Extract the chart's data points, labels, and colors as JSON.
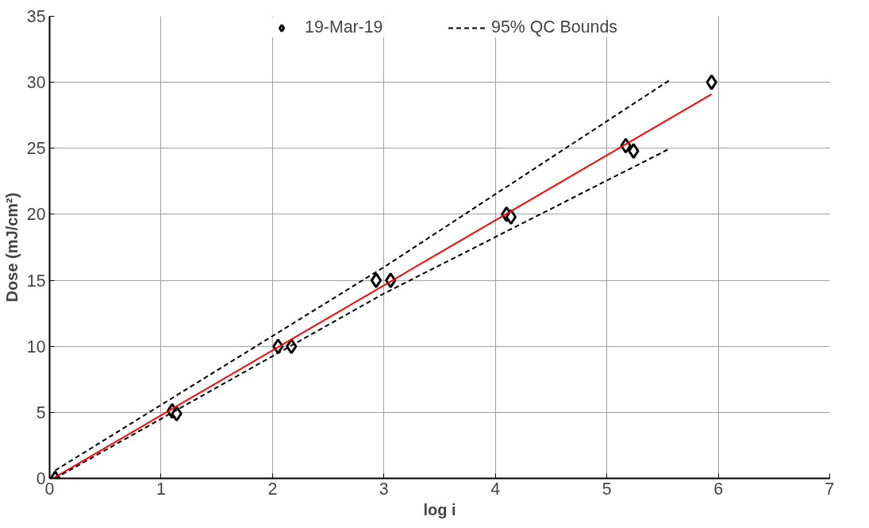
{
  "chart_data": {
    "type": "scatter",
    "xlabel": "log i",
    "ylabel": "Dose (mJ/cm²)",
    "xlim": [
      0,
      7
    ],
    "ylim": [
      0,
      35
    ],
    "xticks": [
      0,
      1,
      2,
      3,
      4,
      5,
      6,
      7
    ],
    "yticks": [
      0,
      5,
      10,
      15,
      20,
      25,
      30,
      35
    ],
    "grid": true,
    "legend": "top",
    "series": [
      {
        "name": "19-Mar-19",
        "marker": "diamond",
        "color": "#000000",
        "x": [
          0.05,
          1.1,
          1.14,
          2.05,
          2.17,
          2.93,
          3.06,
          4.1,
          4.14,
          5.17,
          5.24,
          5.94
        ],
        "values": [
          0,
          5.1,
          4.9,
          10,
          10,
          15,
          15,
          20,
          19.8,
          25.2,
          24.8,
          30
        ]
      },
      {
        "type": "line",
        "color": "#ff0000",
        "line_style": "solid",
        "marker": "none",
        "x": [
          0.03,
          5.94
        ],
        "values": [
          0,
          29.1
        ]
      },
      {
        "name": "95% QC Bounds",
        "type": "line",
        "color": "#000000",
        "line_style": "dashed",
        "marker": "none",
        "x": [
          0.05,
          3,
          5.57
        ],
        "values": [
          0.6,
          16,
          30.2
        ]
      },
      {
        "type": "line",
        "color": "#000000",
        "line_style": "dashed",
        "marker": "none",
        "x": [
          0.05,
          3,
          5.57
        ],
        "values": [
          0,
          14,
          25
        ]
      }
    ]
  }
}
